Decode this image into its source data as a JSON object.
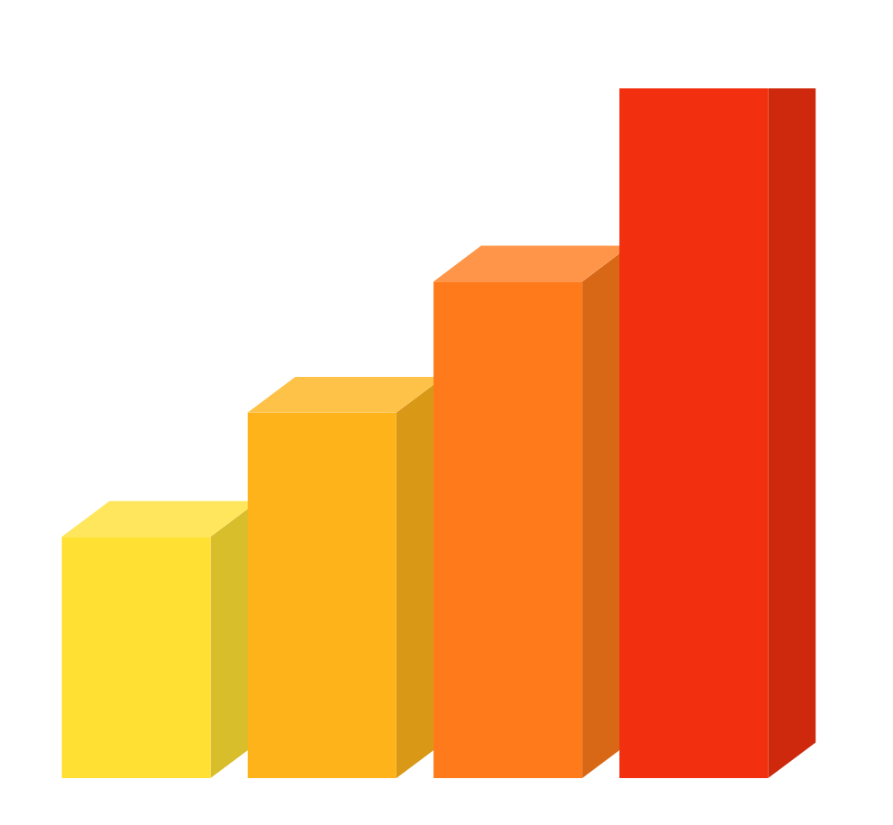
{
  "chart_data": {
    "type": "bar",
    "categories": [
      null,
      null,
      null,
      null
    ],
    "values": [
      35,
      53,
      72,
      100
    ],
    "colors": [
      "#ffe033",
      "#ffb31a",
      "#ff7a1a",
      "#f2300f"
    ],
    "ylim": [
      0,
      100
    ],
    "tick_labels": false
  }
}
